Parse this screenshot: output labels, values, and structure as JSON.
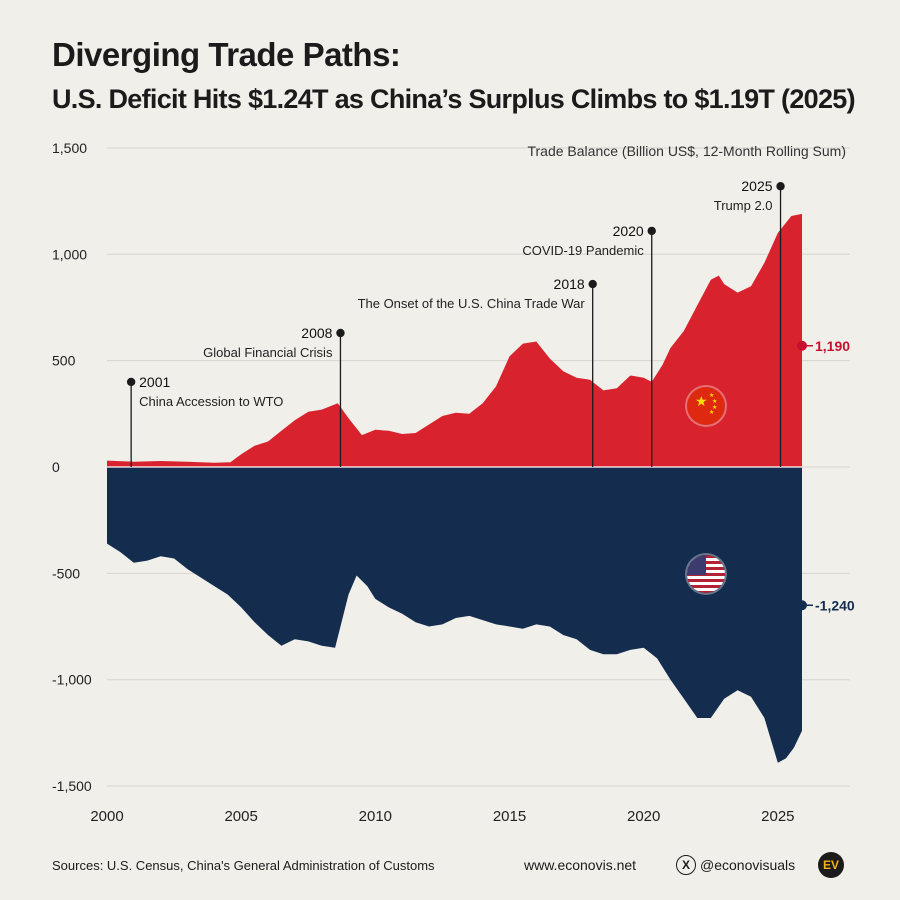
{
  "title": {
    "line1": "Diverging Trade Paths:",
    "line2": "U.S. Deficit Hits $1.24T as China’s Surplus Climbs to $1.19T (2025)"
  },
  "chart_data": {
    "type": "area",
    "subtitle": "Trade Balance (Billion US$, 12-Month Rolling Sum)",
    "xlim": [
      2000,
      2025.9
    ],
    "ylim": [
      -1500,
      1500
    ],
    "x_ticks": [
      "2000",
      "2005",
      "2010",
      "2015",
      "2020",
      "2025"
    ],
    "y_ticks": [
      "1,500",
      "1,000",
      "500",
      "0",
      "-500",
      "-1,000",
      "-1,500"
    ],
    "grid": true,
    "series": [
      {
        "name": "China trade surplus",
        "color": "#d8232f",
        "points": [
          [
            2000,
            30
          ],
          [
            2001,
            25
          ],
          [
            2002,
            28
          ],
          [
            2003,
            25
          ],
          [
            2004,
            20
          ],
          [
            2004.6,
            22
          ],
          [
            2005,
            60
          ],
          [
            2005.5,
            100
          ],
          [
            2006,
            120
          ],
          [
            2006.5,
            170
          ],
          [
            2007,
            220
          ],
          [
            2007.5,
            260
          ],
          [
            2008,
            270
          ],
          [
            2008.6,
            300
          ],
          [
            2009,
            230
          ],
          [
            2009.5,
            150
          ],
          [
            2010,
            175
          ],
          [
            2010.5,
            170
          ],
          [
            2011,
            155
          ],
          [
            2011.5,
            160
          ],
          [
            2012,
            200
          ],
          [
            2012.5,
            240
          ],
          [
            2013,
            255
          ],
          [
            2013.5,
            250
          ],
          [
            2014,
            300
          ],
          [
            2014.5,
            380
          ],
          [
            2015,
            520
          ],
          [
            2015.5,
            580
          ],
          [
            2016,
            590
          ],
          [
            2016.5,
            510
          ],
          [
            2017,
            450
          ],
          [
            2017.5,
            420
          ],
          [
            2018,
            410
          ],
          [
            2018.5,
            360
          ],
          [
            2019,
            370
          ],
          [
            2019.5,
            430
          ],
          [
            2020,
            420
          ],
          [
            2020.3,
            400
          ],
          [
            2020.7,
            480
          ],
          [
            2021,
            560
          ],
          [
            2021.5,
            640
          ],
          [
            2022,
            760
          ],
          [
            2022.5,
            880
          ],
          [
            2022.8,
            900
          ],
          [
            2023,
            860
          ],
          [
            2023.5,
            820
          ],
          [
            2024,
            850
          ],
          [
            2024.5,
            960
          ],
          [
            2025,
            1100
          ],
          [
            2025.5,
            1180
          ],
          [
            2025.9,
            1190
          ]
        ]
      },
      {
        "name": "U.S. trade deficit",
        "color": "#142d4e",
        "points": [
          [
            2000,
            -360
          ],
          [
            2000.5,
            -400
          ],
          [
            2001,
            -450
          ],
          [
            2001.5,
            -440
          ],
          [
            2002,
            -420
          ],
          [
            2002.5,
            -430
          ],
          [
            2003,
            -480
          ],
          [
            2003.5,
            -520
          ],
          [
            2004,
            -560
          ],
          [
            2004.5,
            -600
          ],
          [
            2005,
            -660
          ],
          [
            2005.5,
            -730
          ],
          [
            2006,
            -790
          ],
          [
            2006.5,
            -840
          ],
          [
            2007,
            -810
          ],
          [
            2007.5,
            -820
          ],
          [
            2008,
            -840
          ],
          [
            2008.5,
            -850
          ],
          [
            2009,
            -600
          ],
          [
            2009.3,
            -510
          ],
          [
            2009.7,
            -560
          ],
          [
            2010,
            -620
          ],
          [
            2010.5,
            -660
          ],
          [
            2011,
            -690
          ],
          [
            2011.5,
            -730
          ],
          [
            2012,
            -750
          ],
          [
            2012.5,
            -740
          ],
          [
            2013,
            -710
          ],
          [
            2013.5,
            -700
          ],
          [
            2014,
            -720
          ],
          [
            2014.5,
            -740
          ],
          [
            2015,
            -750
          ],
          [
            2015.5,
            -760
          ],
          [
            2016,
            -740
          ],
          [
            2016.5,
            -750
          ],
          [
            2017,
            -790
          ],
          [
            2017.5,
            -810
          ],
          [
            2018,
            -860
          ],
          [
            2018.5,
            -880
          ],
          [
            2019,
            -880
          ],
          [
            2019.5,
            -860
          ],
          [
            2020,
            -850
          ],
          [
            2020.5,
            -900
          ],
          [
            2021,
            -1000
          ],
          [
            2021.5,
            -1090
          ],
          [
            2022,
            -1180
          ],
          [
            2022.5,
            -1180
          ],
          [
            2023,
            -1090
          ],
          [
            2023.5,
            -1050
          ],
          [
            2024,
            -1080
          ],
          [
            2024.5,
            -1180
          ],
          [
            2025,
            -1390
          ],
          [
            2025.3,
            -1370
          ],
          [
            2025.6,
            -1320
          ],
          [
            2025.9,
            -1240
          ]
        ]
      }
    ],
    "annotations": [
      {
        "year": "2001",
        "label": "China Accession to WTO",
        "x": 2000.9,
        "y": 400
      },
      {
        "year": "2008",
        "label": "Global Financial Crisis",
        "x": 2008.7,
        "y": 630
      },
      {
        "year": "2018",
        "label": "The Onset of the U.S. China Trade War",
        "x": 2018.1,
        "y": 860
      },
      {
        "year": "2020",
        "label": "COVID-19 Pandemic",
        "x": 2020.3,
        "y": 1110
      },
      {
        "year": "2025",
        "label": "Trump 2.0",
        "x": 2025.1,
        "y": 1320
      }
    ],
    "end_labels": {
      "china": {
        "value": 1190,
        "text": "1,190",
        "color": "#c8102e"
      },
      "us": {
        "value": -1240,
        "text": "-1,240",
        "color": "#142d4e"
      }
    }
  },
  "footer": {
    "sources": "Sources: U.S. Census, China's General Administration of Customs",
    "website": "www.econovis.net",
    "x_icon": "x-logo-icon",
    "x_glyph": "X",
    "handle": "@econovisuals",
    "logo_text": "EV"
  },
  "icons": {
    "china_flag": "china-flag-icon",
    "us_flag": "us-flag-icon"
  }
}
